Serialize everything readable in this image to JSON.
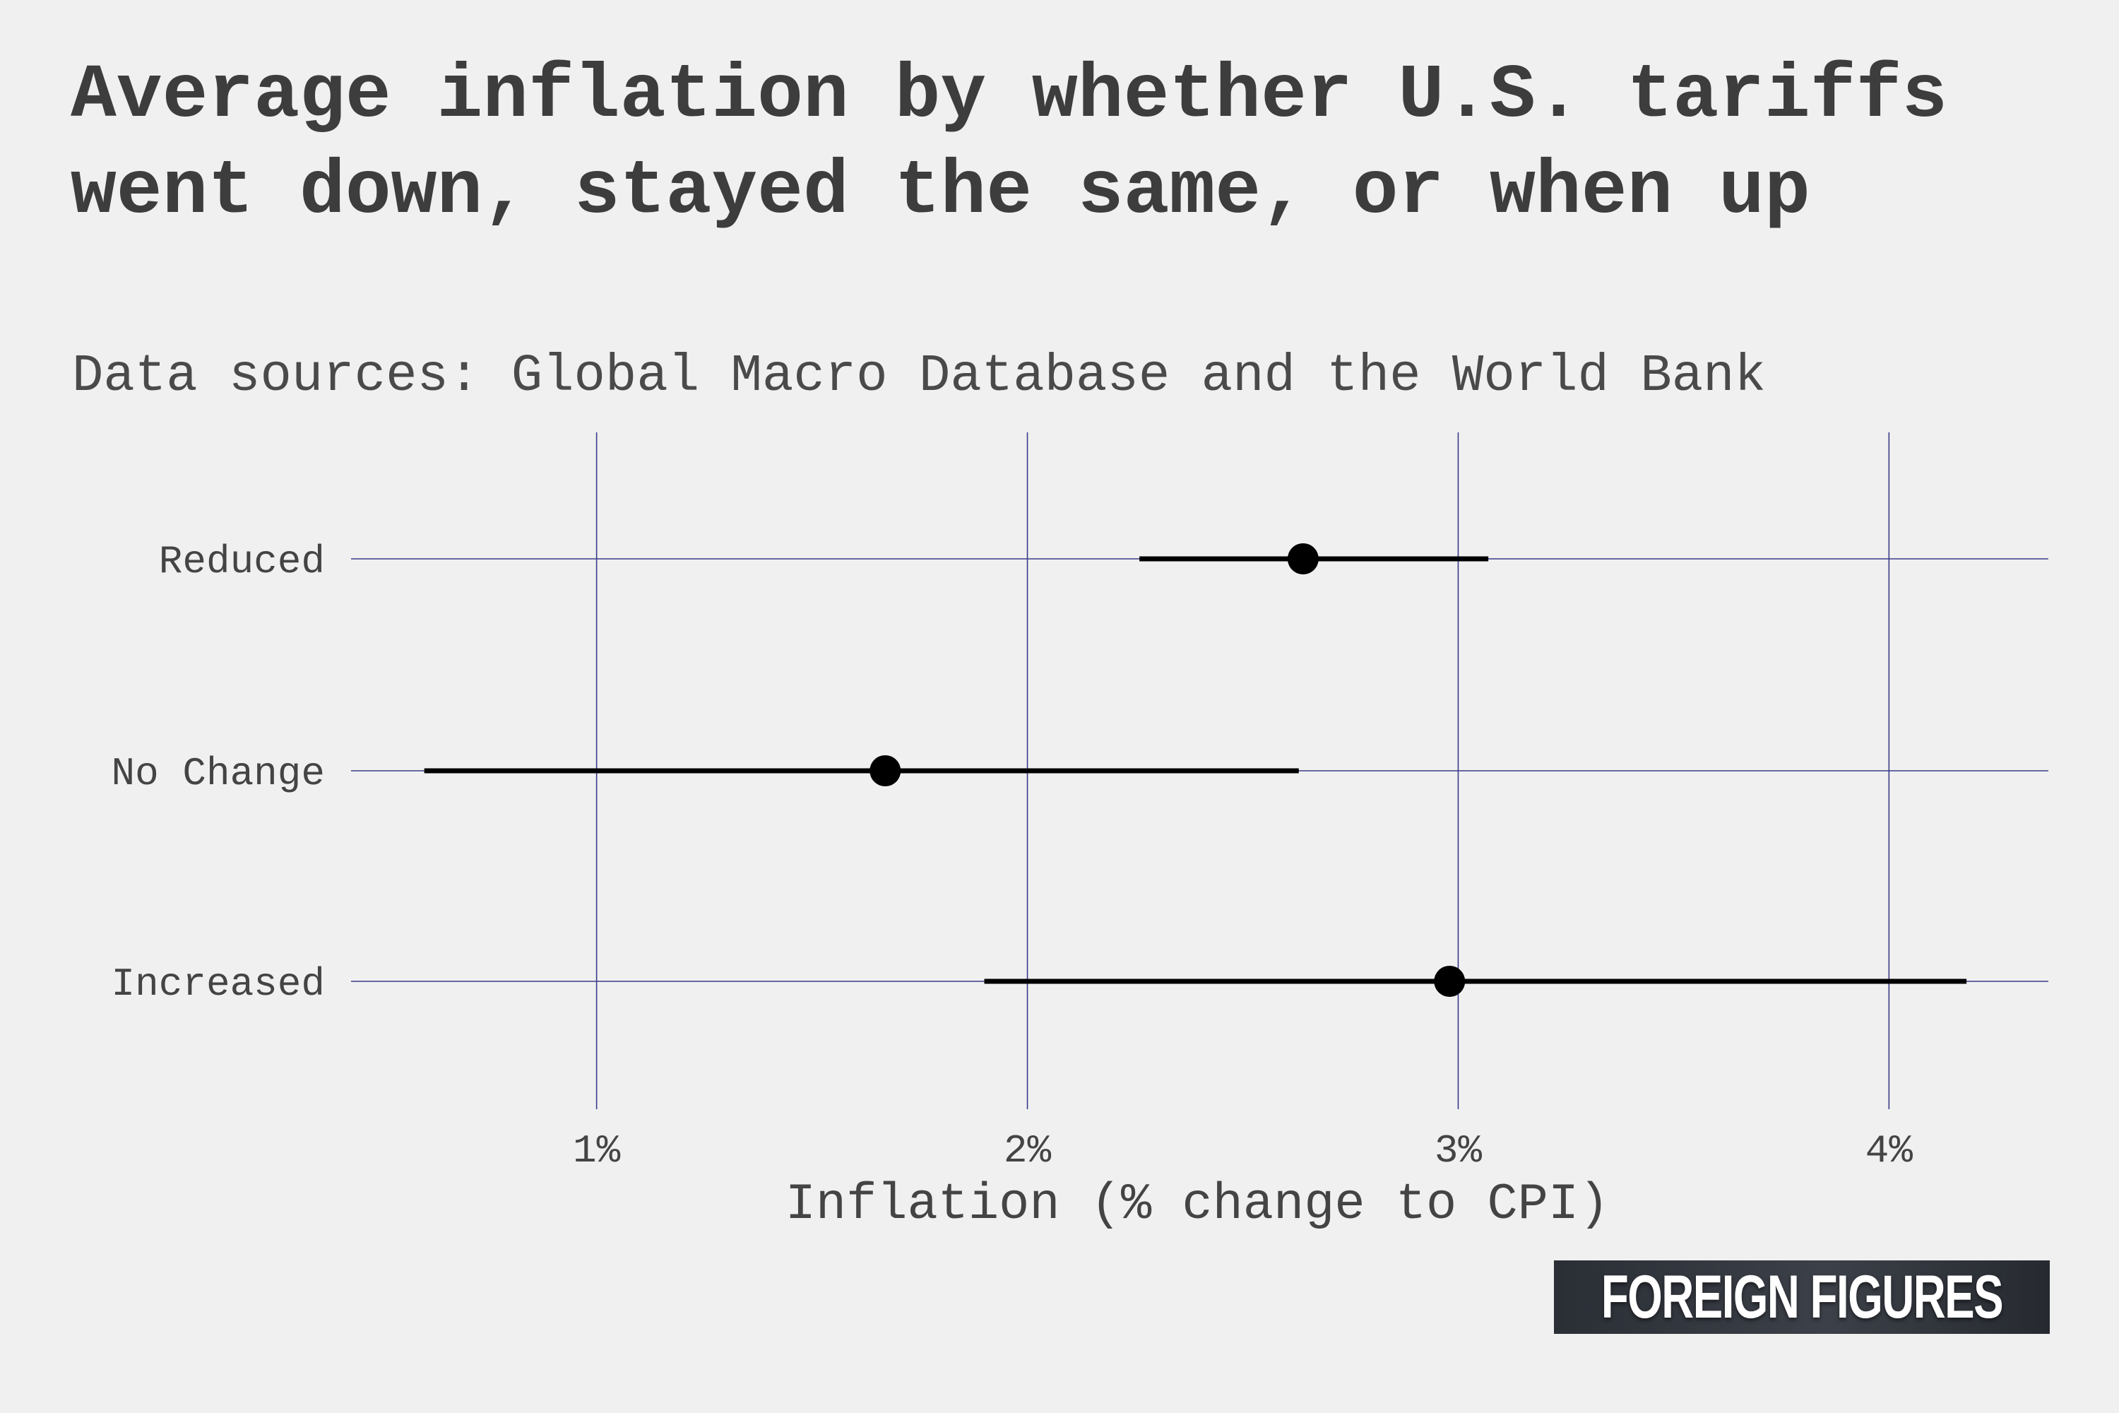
{
  "chart_data": {
    "type": "dot-errorbar",
    "title": "Average inflation by whether U.S. tariffs went down, stayed the same, or when up",
    "subtitle": "Data sources: Global Macro Database and the World Bank",
    "xlabel": "Inflation (% change to CPI)",
    "ylabel": "",
    "xlim": [
      0.43,
      4.37
    ],
    "x_ticks": [
      {
        "value": 1,
        "label": "1%"
      },
      {
        "value": 2,
        "label": "2%"
      },
      {
        "value": 3,
        "label": "3%"
      },
      {
        "value": 4,
        "label": "4%"
      }
    ],
    "grid": true,
    "categories": [
      "Reduced",
      "No Change",
      "Increased"
    ],
    "series": [
      {
        "points": [
          {
            "category": "Reduced",
            "mean": 2.64,
            "low": 2.26,
            "high": 3.07
          },
          {
            "category": "No Change",
            "mean": 1.67,
            "low": 0.6,
            "high": 2.63
          },
          {
            "category": "Increased",
            "mean": 2.98,
            "low": 1.9,
            "high": 4.18
          }
        ]
      }
    ]
  },
  "colors": {
    "background": "#f0f0f0",
    "grid": "#3b3b8a",
    "points": "#000000",
    "text": "#444444"
  },
  "logo": {
    "text": "FOREIGN FIGURES"
  }
}
